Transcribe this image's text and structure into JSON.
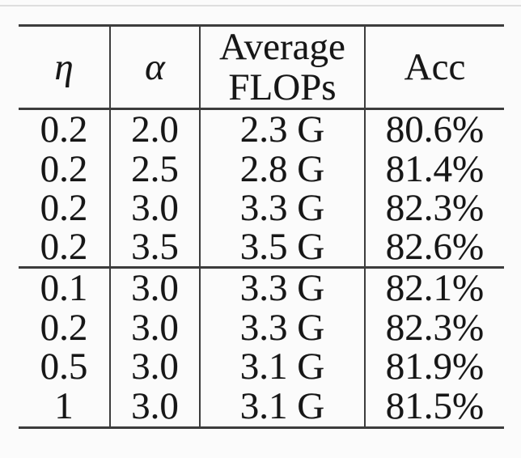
{
  "colors": {
    "page-bg": "#fbfbfb",
    "text": "#161616",
    "rule": "#3c3c3c",
    "faint-line": "#c7c7c7"
  },
  "table": {
    "header": {
      "eta": "η",
      "alpha": "α",
      "flops_line1": "Average",
      "flops_line2": "FLOPs",
      "acc": "Acc"
    },
    "groups": [
      {
        "rows": [
          {
            "eta": "0.2",
            "alpha": "2.0",
            "flops": "2.3 G",
            "acc": "80.6%"
          },
          {
            "eta": "0.2",
            "alpha": "2.5",
            "flops": "2.8 G",
            "acc": "81.4%"
          },
          {
            "eta": "0.2",
            "alpha": "3.0",
            "flops": "3.3 G",
            "acc": "82.3%"
          },
          {
            "eta": "0.2",
            "alpha": "3.5",
            "flops": "3.5 G",
            "acc": "82.6%"
          }
        ]
      },
      {
        "rows": [
          {
            "eta": "0.1",
            "alpha": "3.0",
            "flops": "3.3 G",
            "acc": "82.1%"
          },
          {
            "eta": "0.2",
            "alpha": "3.0",
            "flops": "3.3 G",
            "acc": "82.3%"
          },
          {
            "eta": "0.5",
            "alpha": "3.0",
            "flops": "3.1 G",
            "acc": "81.9%"
          },
          {
            "eta": "1",
            "alpha": "3.0",
            "flops": "3.1 G",
            "acc": "81.5%"
          }
        ]
      }
    ]
  }
}
